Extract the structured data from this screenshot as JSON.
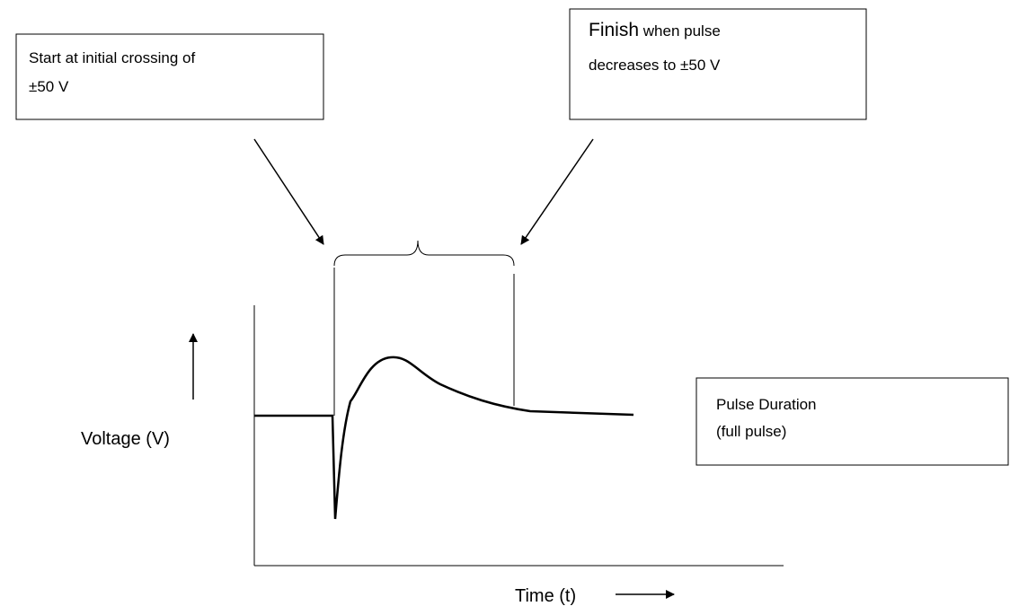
{
  "boxes": [
    {
      "lines": [
        "Start at initial crossing of",
        "±50 V"
      ]
    },
    {
      "lead": "Finish",
      "lines": [
        "when pulse",
        "decreases to ±50 V"
      ]
    },
    {
      "lines": [
        "Pulse Duration",
        "(full pulse)"
      ]
    }
  ],
  "axes": {
    "y_label": "Voltage (V)",
    "x_label": "Time (t)"
  }
}
